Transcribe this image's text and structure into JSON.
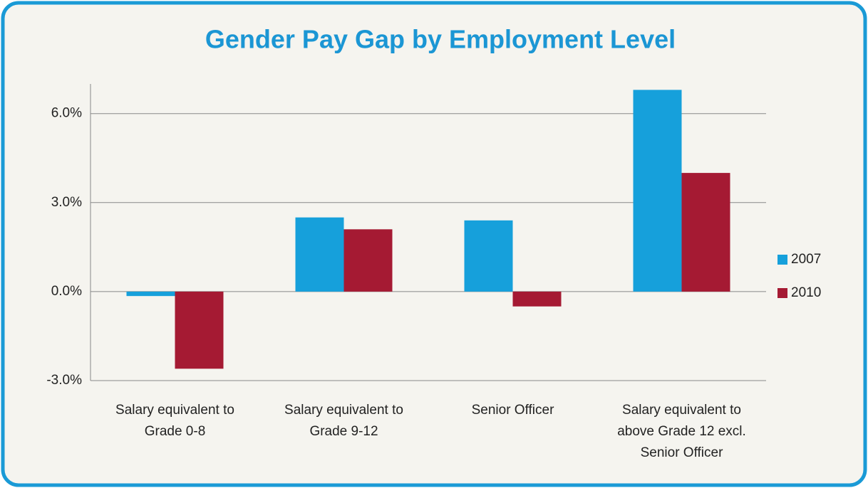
{
  "chart_data": {
    "type": "bar",
    "title": "Gender Pay Gap by Employment Level",
    "categories": [
      "Salary equivalent to Grade 0-8",
      "Salary equivalent to Grade 9-12",
      "Senior Officer",
      "Salary equivalent to above Grade 12 excl. Senior Officer"
    ],
    "series": [
      {
        "name": "2007",
        "color": "#16a0db",
        "values": [
          -0.15,
          2.5,
          2.4,
          6.8
        ]
      },
      {
        "name": "2010",
        "color": "#a51a33",
        "values": [
          -2.6,
          2.1,
          -0.5,
          4.0
        ]
      }
    ],
    "ylim": [
      -3,
      7
    ],
    "yticks": [
      {
        "value": -3,
        "label": "-3.0%"
      },
      {
        "value": 0,
        "label": "0.0%"
      },
      {
        "value": 3,
        "label": "3.0%"
      },
      {
        "value": 6,
        "label": "6.0%"
      }
    ],
    "grid": true,
    "legend": "right"
  }
}
